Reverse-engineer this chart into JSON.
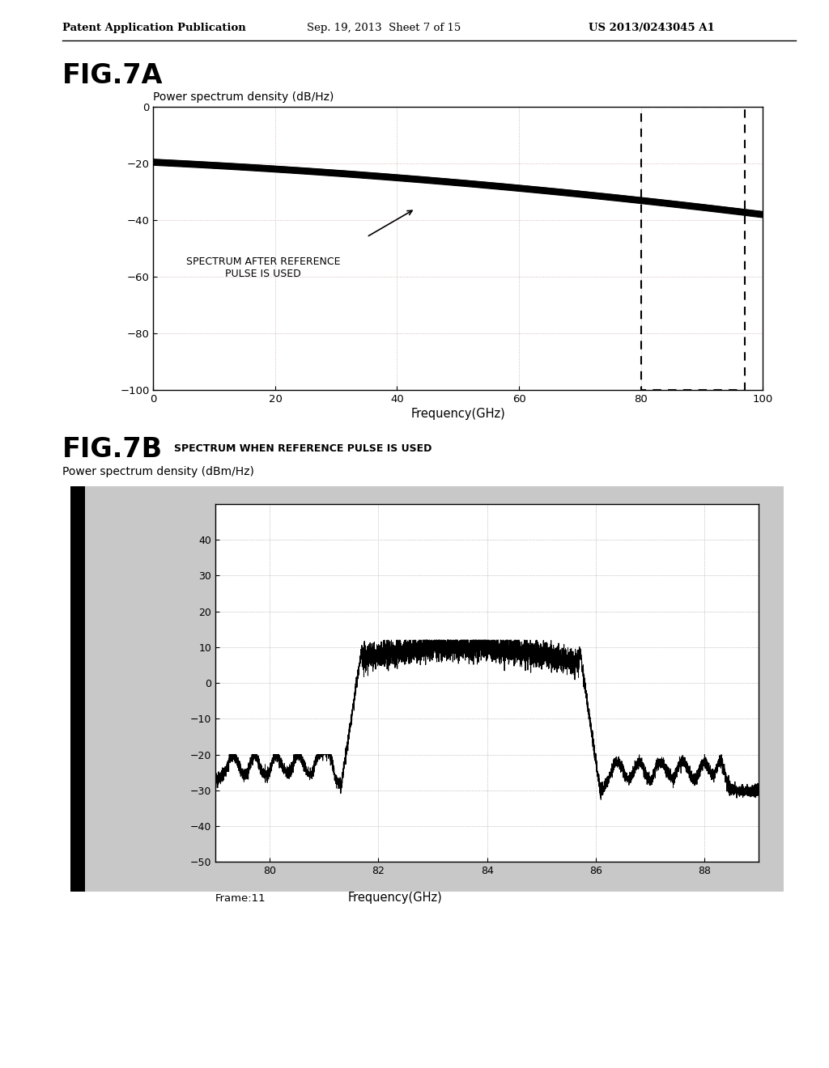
{
  "header_left": "Patent Application Publication",
  "header_center": "Sep. 19, 2013  Sheet 7 of 15",
  "header_right": "US 2013/0243045 A1",
  "fig7a_label": "FIG.7A",
  "fig7a_ylabel": "Power spectrum density (dB/Hz)",
  "fig7a_xlabel": "Frequency(GHz)",
  "fig7a_annotation": "SPECTRUM AFTER REFERENCE\nPULSE IS USED",
  "fig7a_xlim": [
    0,
    100
  ],
  "fig7a_ylim": [
    -100,
    0
  ],
  "fig7a_xticks": [
    0,
    20,
    40,
    60,
    80,
    100
  ],
  "fig7a_yticks": [
    0,
    -20,
    -40,
    -60,
    -80,
    -100
  ],
  "fig7b_label": "FIG.7B",
  "fig7b_subtitle": "SPECTRUM WHEN REFERENCE PULSE IS USED",
  "fig7b_ylabel": "Power spectrum density (dBm/Hz)",
  "fig7b_xlabel": "Frequency(GHz)",
  "fig7b_xlabel2": "Frame:11",
  "fig7b_xlim": [
    79,
    89
  ],
  "fig7b_ylim": [
    -50,
    50
  ],
  "fig7b_xticks": [
    80,
    82,
    84,
    86,
    88
  ],
  "fig7b_yticks": [
    -50,
    -40,
    -30,
    -20,
    -10,
    0,
    10,
    20,
    30,
    40
  ],
  "background_color": "#ffffff",
  "plot_bg_color_7b": "#c8c8c8",
  "line_color": "#000000",
  "grid_color_7a": "#d0b8b8",
  "grid_color_7b": "#aaaaaa"
}
